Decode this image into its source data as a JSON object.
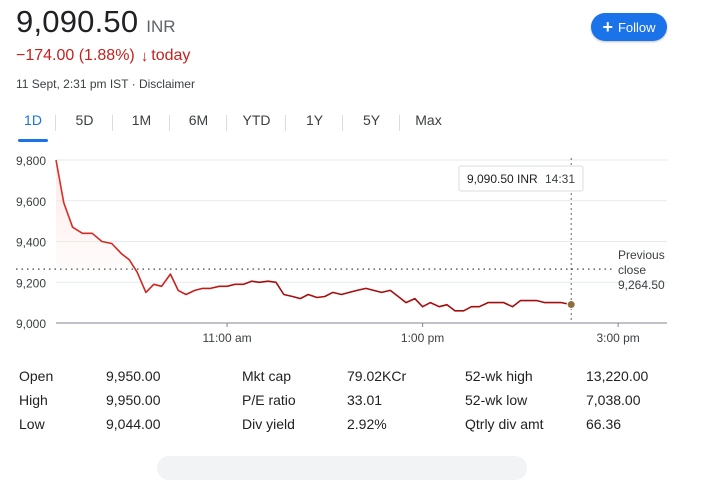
{
  "quote": {
    "price": "9,090.50",
    "currency": "INR",
    "change": "−174.00 (1.88%)",
    "change_arrow": "↓",
    "change_period": "today",
    "timestamp": "11 Sept, 2:31 pm IST · Disclaimer"
  },
  "follow_button": {
    "label": "Follow",
    "icon": "plus-icon",
    "color": "#1a73e8"
  },
  "tabs": [
    {
      "label": "1D",
      "active": true
    },
    {
      "label": "5D"
    },
    {
      "label": "1M"
    },
    {
      "label": "6M"
    },
    {
      "label": "YTD"
    },
    {
      "label": "1Y"
    },
    {
      "label": "5Y"
    },
    {
      "label": "Max"
    }
  ],
  "chart_data": {
    "type": "line",
    "y_tick_labels": [
      "9,800",
      "9,600",
      "9,400",
      "9,200",
      "9,000"
    ],
    "y_ticks": [
      9800,
      9600,
      9400,
      9200,
      9000
    ],
    "ylim": [
      9000,
      9800
    ],
    "x_tick_labels": [
      "11:00 am",
      "1:00 pm",
      "3:00 pm"
    ],
    "x_ticks": [
      11.0,
      13.0,
      15.0
    ],
    "xlim": [
      9.25,
      15.5
    ],
    "line_color": "#d93025",
    "trend_color": "#a50e0e",
    "hover_label": "9,090.50 INR",
    "hover_time": "14:31",
    "hover_x": 14.52,
    "previous_close_label": [
      "Previous",
      "close"
    ],
    "previous_close_value": "9,264.50",
    "previous_close": 9264.5,
    "series": [
      {
        "x": [
          9.25,
          9.33,
          9.42,
          9.52,
          9.62,
          9.72,
          9.82,
          9.92,
          10.0,
          10.08,
          10.17,
          10.25,
          10.33,
          10.42,
          10.5,
          10.58,
          10.67,
          10.75,
          10.83,
          10.92,
          11.0,
          11.08,
          11.17,
          11.25,
          11.33,
          11.42,
          11.5,
          11.58,
          11.67,
          11.75,
          11.83,
          11.92,
          12.0,
          12.08,
          12.17,
          12.25,
          12.33,
          12.42,
          12.5,
          12.58,
          12.67,
          12.75,
          12.83,
          12.92,
          13.0,
          13.08,
          13.17,
          13.25,
          13.33,
          13.42,
          13.5,
          13.58,
          13.67,
          13.75,
          13.83,
          13.92,
          14.0,
          14.08,
          14.17,
          14.25,
          14.33,
          14.42,
          14.52
        ],
        "y": [
          9800,
          9590,
          9470,
          9440,
          9440,
          9400,
          9390,
          9340,
          9310,
          9250,
          9150,
          9190,
          9180,
          9240,
          9160,
          9140,
          9160,
          9170,
          9170,
          9180,
          9180,
          9190,
          9190,
          9205,
          9200,
          9205,
          9200,
          9140,
          9130,
          9120,
          9140,
          9125,
          9130,
          9150,
          9140,
          9150,
          9160,
          9170,
          9160,
          9150,
          9160,
          9130,
          9100,
          9120,
          9080,
          9100,
          9080,
          9090,
          9060,
          9060,
          9080,
          9080,
          9100,
          9100,
          9100,
          9080,
          9110,
          9110,
          9110,
          9100,
          9100,
          9100,
          9090.5
        ]
      }
    ]
  },
  "stats": {
    "col1": [
      {
        "label": "Open",
        "value": "9,950.00"
      },
      {
        "label": "High",
        "value": "9,950.00"
      },
      {
        "label": "Low",
        "value": "9,044.00"
      }
    ],
    "col2": [
      {
        "label": "Mkt cap",
        "value": "79.02KCr"
      },
      {
        "label": "P/E ratio",
        "value": "33.01"
      },
      {
        "label": "Div yield",
        "value": "2.92%"
      }
    ],
    "col3": [
      {
        "label": "52-wk high",
        "value": "13,220.00"
      },
      {
        "label": "52-wk low",
        "value": "7,038.00"
      },
      {
        "label": "Qtrly div amt",
        "value": "66.36"
      }
    ]
  }
}
